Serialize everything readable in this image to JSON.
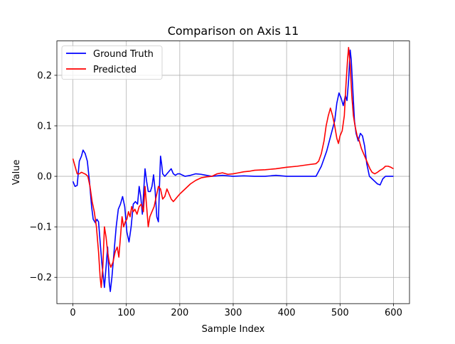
{
  "chart_data": {
    "type": "line",
    "title": "Comparison on Axis 11",
    "xlabel": "Sample Index",
    "ylabel": "Value",
    "xlim": [
      -30,
      630
    ],
    "ylim": [
      -0.252,
      0.268
    ],
    "grid": true,
    "legend_position": "upper-left",
    "x_ticks": [
      0,
      100,
      200,
      300,
      400,
      500,
      600
    ],
    "x_tick_labels": [
      "0",
      "100",
      "200",
      "300",
      "400",
      "500",
      "600"
    ],
    "y_ticks": [
      -0.2,
      -0.1,
      0.0,
      0.1,
      0.2
    ],
    "y_tick_labels": [
      "−0.2",
      "−0.1",
      "0.0",
      "0.1",
      "0.2"
    ],
    "series": [
      {
        "name": "Ground Truth",
        "color": "#0000ff",
        "points": [
          [
            0,
            -0.01
          ],
          [
            4,
            -0.02
          ],
          [
            8,
            -0.018
          ],
          [
            12,
            0.03
          ],
          [
            16,
            0.04
          ],
          [
            19,
            0.052
          ],
          [
            23,
            0.045
          ],
          [
            27,
            0.03
          ],
          [
            31,
            -0.01
          ],
          [
            35,
            -0.06
          ],
          [
            38,
            -0.085
          ],
          [
            42,
            -0.092
          ],
          [
            45,
            -0.085
          ],
          [
            48,
            -0.09
          ],
          [
            51,
            -0.13
          ],
          [
            54,
            -0.17
          ],
          [
            57,
            -0.2
          ],
          [
            59,
            -0.22
          ],
          [
            62,
            -0.18
          ],
          [
            65,
            -0.14
          ],
          [
            68,
            -0.21
          ],
          [
            70,
            -0.228
          ],
          [
            73,
            -0.2
          ],
          [
            77,
            -0.15
          ],
          [
            81,
            -0.1
          ],
          [
            85,
            -0.065
          ],
          [
            89,
            -0.055
          ],
          [
            93,
            -0.04
          ],
          [
            97,
            -0.06
          ],
          [
            101,
            -0.11
          ],
          [
            105,
            -0.13
          ],
          [
            109,
            -0.1
          ],
          [
            113,
            -0.055
          ],
          [
            117,
            -0.05
          ],
          [
            121,
            -0.055
          ],
          [
            124,
            -0.02
          ],
          [
            127,
            -0.04
          ],
          [
            130,
            -0.075
          ],
          [
            133,
            -0.02
          ],
          [
            135,
            0.015
          ],
          [
            138,
            -0.01
          ],
          [
            141,
            -0.03
          ],
          [
            145,
            -0.03
          ],
          [
            148,
            -0.02
          ],
          [
            151,
            0.003
          ],
          [
            154,
            -0.03
          ],
          [
            157,
            -0.08
          ],
          [
            160,
            -0.09
          ],
          [
            162,
            -0.02
          ],
          [
            164,
            0.04
          ],
          [
            166,
            0.025
          ],
          [
            168,
            0.005
          ],
          [
            172,
            0.0
          ],
          [
            176,
            0.005
          ],
          [
            180,
            0.01
          ],
          [
            184,
            0.015
          ],
          [
            188,
            0.005
          ],
          [
            192,
            0.002
          ],
          [
            196,
            0.005
          ],
          [
            200,
            0.005
          ],
          [
            210,
            0.0
          ],
          [
            220,
            0.002
          ],
          [
            230,
            0.005
          ],
          [
            240,
            0.004
          ],
          [
            250,
            0.002
          ],
          [
            260,
            0.0
          ],
          [
            280,
            0.002
          ],
          [
            300,
            0.0
          ],
          [
            320,
            0.001
          ],
          [
            340,
            0.0
          ],
          [
            360,
            0.0
          ],
          [
            380,
            0.002
          ],
          [
            400,
            0.0
          ],
          [
            420,
            0.0
          ],
          [
            440,
            0.0
          ],
          [
            455,
            0.0
          ],
          [
            460,
            0.01
          ],
          [
            465,
            0.02
          ],
          [
            470,
            0.035
          ],
          [
            475,
            0.05
          ],
          [
            480,
            0.07
          ],
          [
            485,
            0.09
          ],
          [
            490,
            0.11
          ],
          [
            494,
            0.145
          ],
          [
            498,
            0.165
          ],
          [
            502,
            0.155
          ],
          [
            506,
            0.14
          ],
          [
            510,
            0.16
          ],
          [
            513,
            0.15
          ],
          [
            516,
            0.19
          ],
          [
            519,
            0.25
          ],
          [
            521,
            0.23
          ],
          [
            524,
            0.17
          ],
          [
            527,
            0.11
          ],
          [
            530,
            0.085
          ],
          [
            534,
            0.07
          ],
          [
            538,
            0.085
          ],
          [
            542,
            0.08
          ],
          [
            546,
            0.06
          ],
          [
            550,
            0.025
          ],
          [
            555,
            0.0
          ],
          [
            560,
            -0.005
          ],
          [
            565,
            -0.01
          ],
          [
            570,
            -0.015
          ],
          [
            575,
            -0.017
          ],
          [
            580,
            -0.005
          ],
          [
            585,
            0.0
          ],
          [
            590,
            0.0
          ],
          [
            600,
            0.0
          ]
        ]
      },
      {
        "name": "Predicted",
        "color": "#ff0000",
        "points": [
          [
            0,
            0.035
          ],
          [
            4,
            0.02
          ],
          [
            8,
            0.005
          ],
          [
            12,
            0.005
          ],
          [
            16,
            0.008
          ],
          [
            20,
            0.006
          ],
          [
            24,
            0.004
          ],
          [
            28,
            0.0
          ],
          [
            32,
            -0.02
          ],
          [
            36,
            -0.05
          ],
          [
            40,
            -0.07
          ],
          [
            44,
            -0.1
          ],
          [
            48,
            -0.15
          ],
          [
            51,
            -0.2
          ],
          [
            53,
            -0.22
          ],
          [
            56,
            -0.18
          ],
          [
            59,
            -0.1
          ],
          [
            62,
            -0.12
          ],
          [
            65,
            -0.15
          ],
          [
            68,
            -0.17
          ],
          [
            71,
            -0.18
          ],
          [
            75,
            -0.17
          ],
          [
            79,
            -0.15
          ],
          [
            83,
            -0.14
          ],
          [
            86,
            -0.16
          ],
          [
            89,
            -0.12
          ],
          [
            92,
            -0.08
          ],
          [
            95,
            -0.1
          ],
          [
            98,
            -0.09
          ],
          [
            101,
            -0.085
          ],
          [
            104,
            -0.07
          ],
          [
            107,
            -0.08
          ],
          [
            110,
            -0.06
          ],
          [
            113,
            -0.07
          ],
          [
            116,
            -0.065
          ],
          [
            120,
            -0.075
          ],
          [
            124,
            -0.06
          ],
          [
            128,
            -0.055
          ],
          [
            132,
            -0.07
          ],
          [
            135,
            -0.02
          ],
          [
            138,
            -0.06
          ],
          [
            141,
            -0.1
          ],
          [
            144,
            -0.08
          ],
          [
            148,
            -0.07
          ],
          [
            152,
            -0.06
          ],
          [
            156,
            -0.04
          ],
          [
            160,
            -0.02
          ],
          [
            164,
            -0.025
          ],
          [
            168,
            -0.045
          ],
          [
            172,
            -0.04
          ],
          [
            176,
            -0.025
          ],
          [
            180,
            -0.035
          ],
          [
            184,
            -0.045
          ],
          [
            188,
            -0.05
          ],
          [
            192,
            -0.045
          ],
          [
            196,
            -0.04
          ],
          [
            200,
            -0.035
          ],
          [
            210,
            -0.025
          ],
          [
            220,
            -0.015
          ],
          [
            230,
            -0.008
          ],
          [
            240,
            -0.003
          ],
          [
            250,
            -0.001
          ],
          [
            260,
            0.0
          ],
          [
            270,
            0.005
          ],
          [
            280,
            0.007
          ],
          [
            290,
            0.004
          ],
          [
            300,
            0.005
          ],
          [
            310,
            0.007
          ],
          [
            320,
            0.009
          ],
          [
            330,
            0.01
          ],
          [
            340,
            0.012
          ],
          [
            360,
            0.013
          ],
          [
            380,
            0.015
          ],
          [
            400,
            0.018
          ],
          [
            420,
            0.02
          ],
          [
            440,
            0.023
          ],
          [
            455,
            0.025
          ],
          [
            460,
            0.03
          ],
          [
            465,
            0.045
          ],
          [
            470,
            0.07
          ],
          [
            474,
            0.1
          ],
          [
            478,
            0.12
          ],
          [
            482,
            0.135
          ],
          [
            486,
            0.12
          ],
          [
            490,
            0.1
          ],
          [
            494,
            0.075
          ],
          [
            497,
            0.065
          ],
          [
            500,
            0.08
          ],
          [
            504,
            0.09
          ],
          [
            508,
            0.12
          ],
          [
            511,
            0.18
          ],
          [
            514,
            0.23
          ],
          [
            516,
            0.255
          ],
          [
            519,
            0.22
          ],
          [
            522,
            0.16
          ],
          [
            525,
            0.12
          ],
          [
            528,
            0.1
          ],
          [
            532,
            0.08
          ],
          [
            536,
            0.07
          ],
          [
            540,
            0.055
          ],
          [
            544,
            0.045
          ],
          [
            548,
            0.035
          ],
          [
            552,
            0.025
          ],
          [
            556,
            0.015
          ],
          [
            560,
            0.008
          ],
          [
            565,
            0.005
          ],
          [
            570,
            0.008
          ],
          [
            575,
            0.012
          ],
          [
            580,
            0.015
          ],
          [
            585,
            0.02
          ],
          [
            590,
            0.02
          ],
          [
            595,
            0.018
          ],
          [
            600,
            0.015
          ]
        ]
      }
    ]
  }
}
